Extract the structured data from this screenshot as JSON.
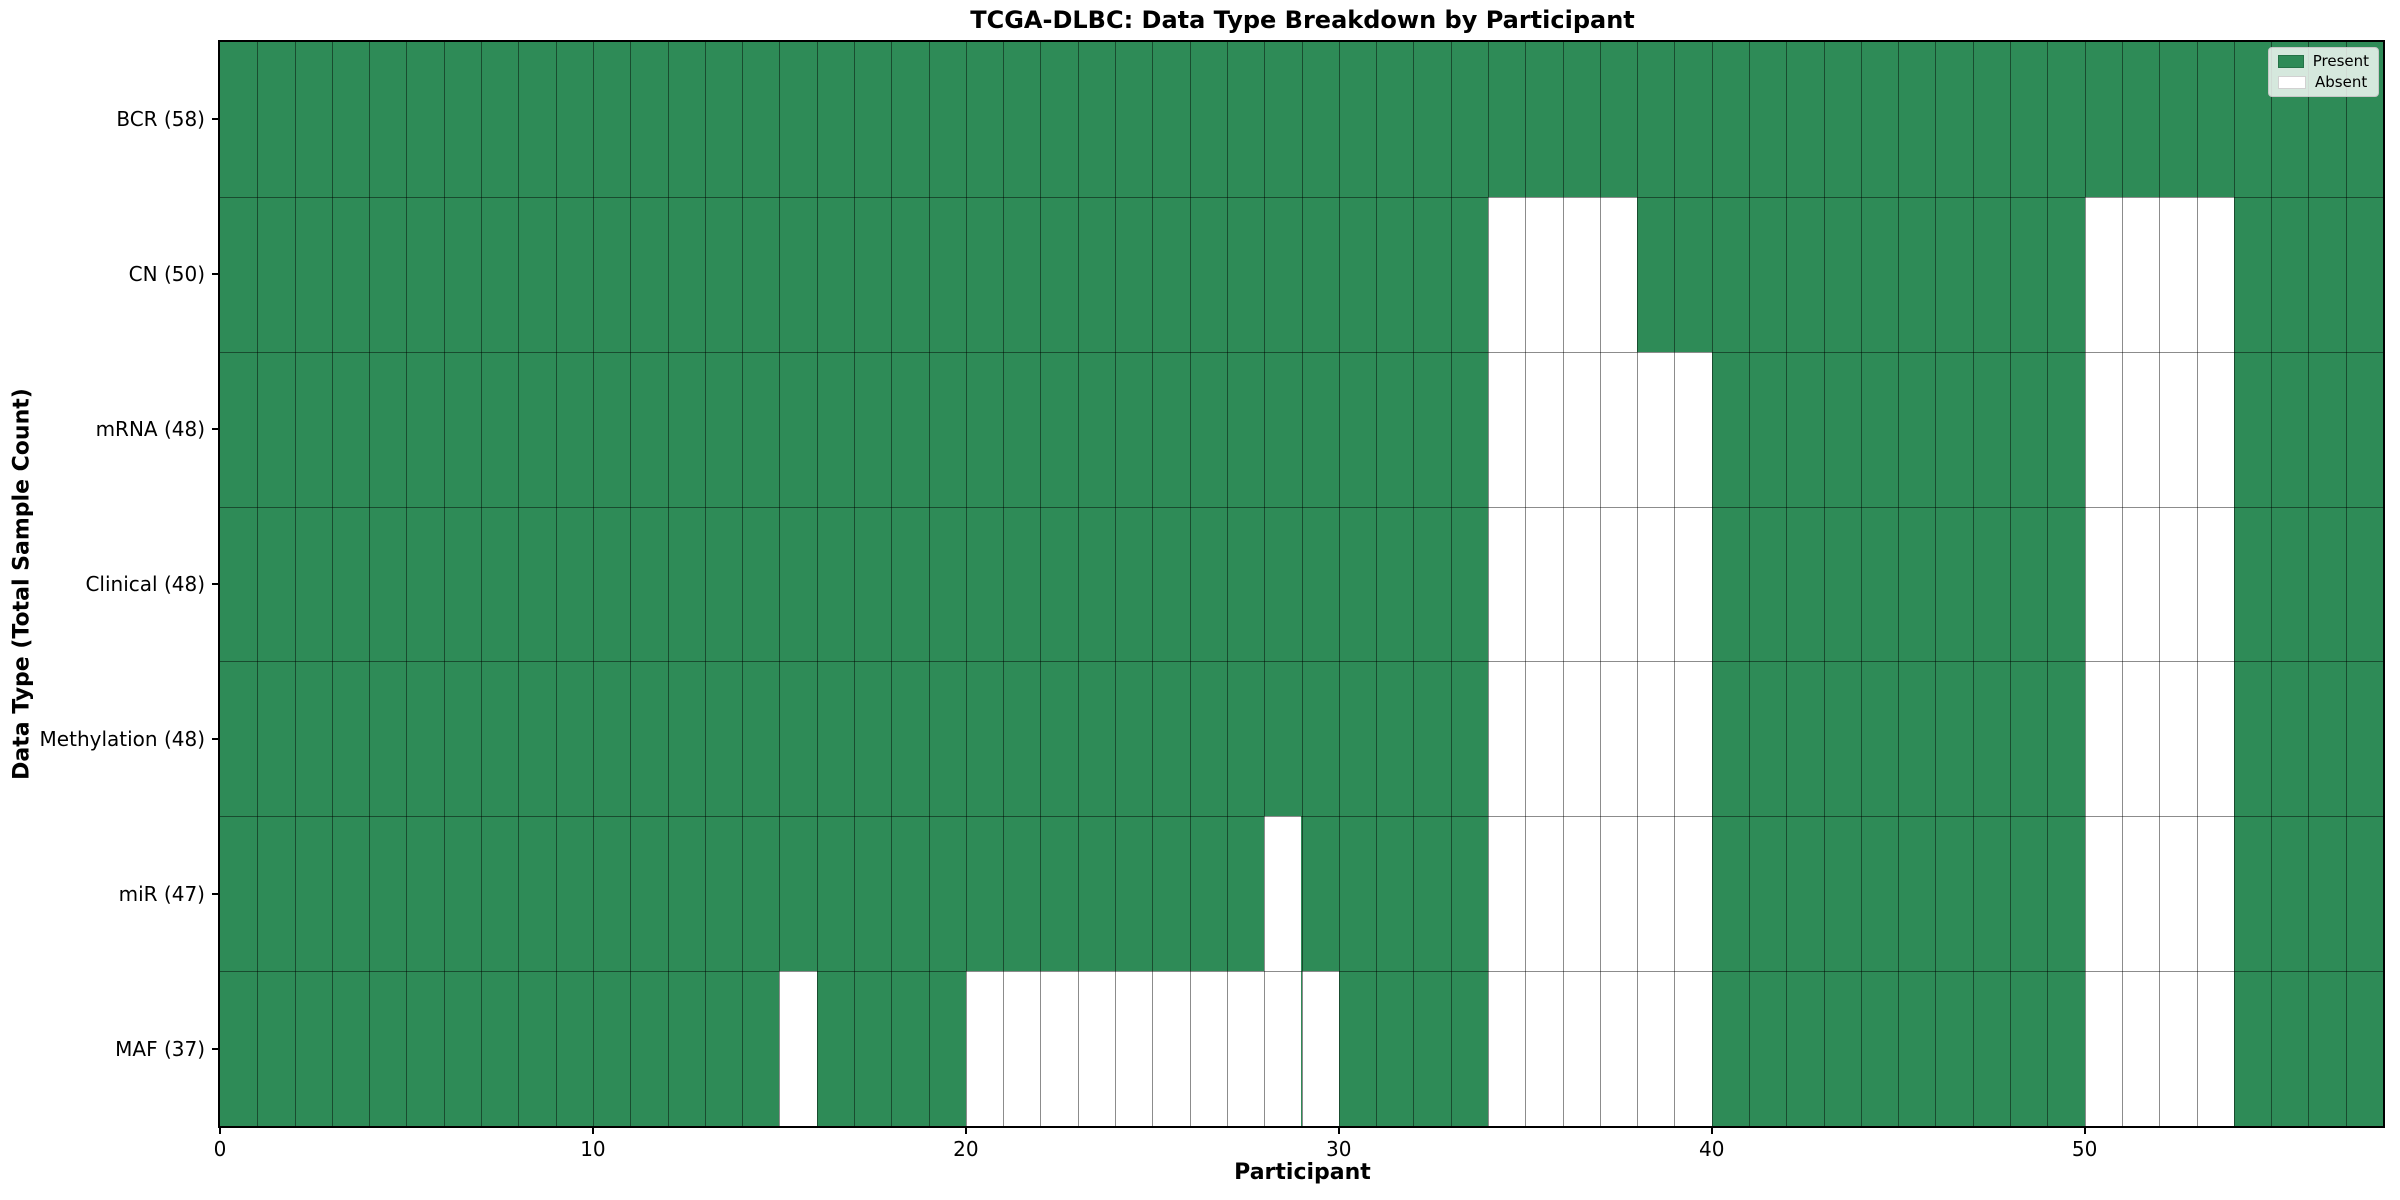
{
  "chart_data": {
    "type": "heatmap",
    "title": "TCGA-DLBC: Data Type Breakdown by Participant",
    "xlabel": "Participant",
    "ylabel": "Data Type (Total Sample Count)",
    "x_ticks": [
      0,
      10,
      20,
      30,
      40,
      50
    ],
    "n_participants": 58,
    "grid": true,
    "legend_position": "upper right",
    "legend": [
      {
        "label": "Present",
        "color": "#2e8b57"
      },
      {
        "label": "Absent",
        "color": "#ffffff"
      }
    ],
    "colors": {
      "present": "#2e8b57",
      "absent": "#ffffff",
      "gridline": "rgba(0,0,0,0.45)",
      "spine": "#000000"
    },
    "rows": [
      {
        "label": "BCR (58)",
        "total": 58,
        "absent_participants": []
      },
      {
        "label": "CN (50)",
        "total": 50,
        "absent_participants": [
          34,
          35,
          36,
          37,
          50,
          51,
          52,
          53
        ]
      },
      {
        "label": "mRNA (48)",
        "total": 48,
        "absent_participants": [
          34,
          35,
          36,
          37,
          38,
          39,
          50,
          51,
          52,
          53
        ]
      },
      {
        "label": "Clinical (48)",
        "total": 48,
        "absent_participants": [
          34,
          35,
          36,
          37,
          38,
          39,
          50,
          51,
          52,
          53
        ]
      },
      {
        "label": "Methylation (48)",
        "total": 48,
        "absent_participants": [
          34,
          35,
          36,
          37,
          38,
          39,
          50,
          51,
          52,
          53
        ]
      },
      {
        "label": "miR (47)",
        "total": 47,
        "absent_participants": [
          28,
          34,
          35,
          36,
          37,
          38,
          39,
          50,
          51,
          52,
          53
        ]
      },
      {
        "label": "MAF (37)",
        "total": 37,
        "absent_participants": [
          15,
          20,
          21,
          22,
          23,
          24,
          25,
          26,
          27,
          28,
          29,
          34,
          35,
          36,
          37,
          38,
          39,
          50,
          51,
          52,
          53
        ]
      }
    ]
  }
}
